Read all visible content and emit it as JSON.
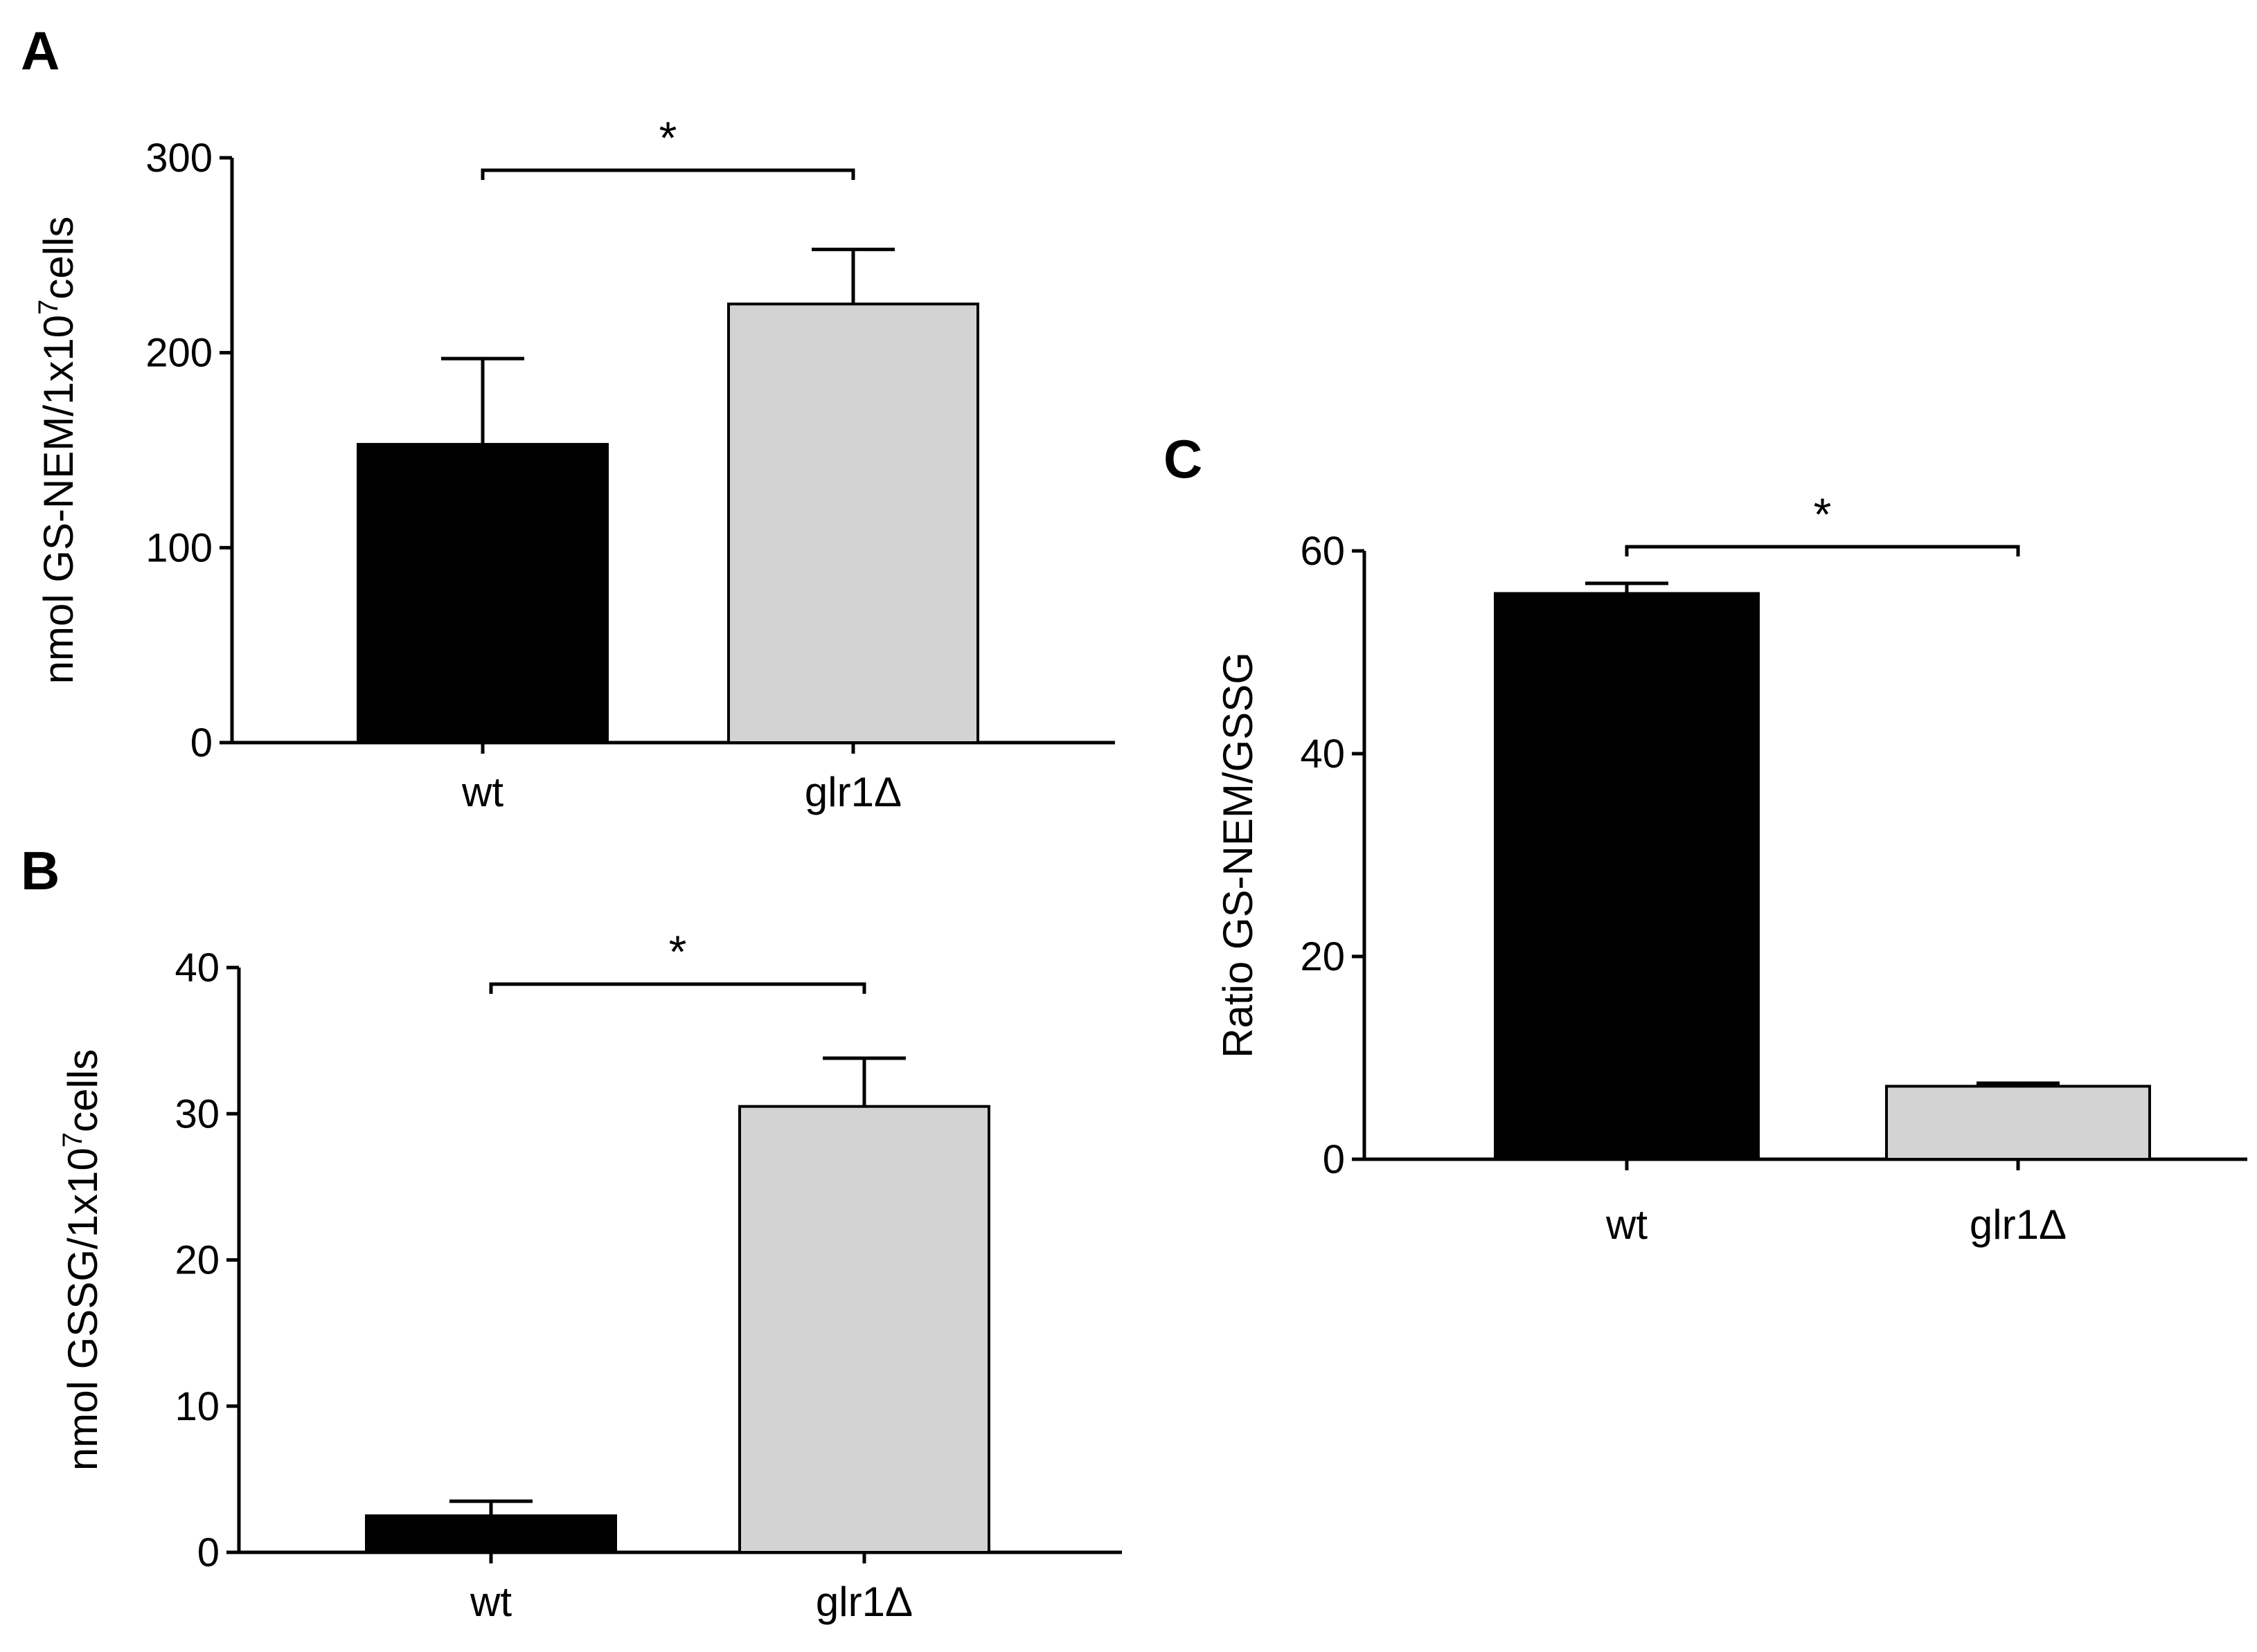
{
  "chart_data": [
    {
      "id": "A",
      "type": "bar",
      "panel_label": "A",
      "ylabel_main": "nmol GS-NEM/1x10",
      "ylabel_sup": "7",
      "ylabel_tail": "cells",
      "categories": [
        "wt",
        "glr1Δ"
      ],
      "values": [
        153,
        225
      ],
      "errors": [
        44,
        28
      ],
      "colors": [
        "#000000",
        "#d3d3d3"
      ],
      "ylim": [
        0,
        300
      ],
      "yticks": [
        0,
        100,
        200,
        300
      ],
      "significance": "*"
    },
    {
      "id": "B",
      "type": "bar",
      "panel_label": "B",
      "ylabel_main": "nmol GSSG/1x10",
      "ylabel_sup": "7",
      "ylabel_tail": "cells",
      "categories": [
        "wt",
        "glr1Δ"
      ],
      "values": [
        2.5,
        30.5
      ],
      "errors": [
        1.0,
        3.3
      ],
      "colors": [
        "#000000",
        "#d3d3d3"
      ],
      "ylim": [
        0,
        40
      ],
      "yticks": [
        0,
        10,
        20,
        30,
        40
      ],
      "significance": "*"
    },
    {
      "id": "C",
      "type": "bar",
      "panel_label": "C",
      "ylabel_main": "Ratio GS-NEM/GSSG",
      "ylabel_sup": "",
      "ylabel_tail": "",
      "categories": [
        "wt",
        "glr1Δ"
      ],
      "values": [
        55.8,
        7.2
      ],
      "errors": [
        1.0,
        0.3
      ],
      "colors": [
        "#000000",
        "#d3d3d3"
      ],
      "ylim": [
        0,
        60
      ],
      "yticks": [
        0,
        20,
        40,
        60
      ],
      "significance": "*"
    }
  ]
}
